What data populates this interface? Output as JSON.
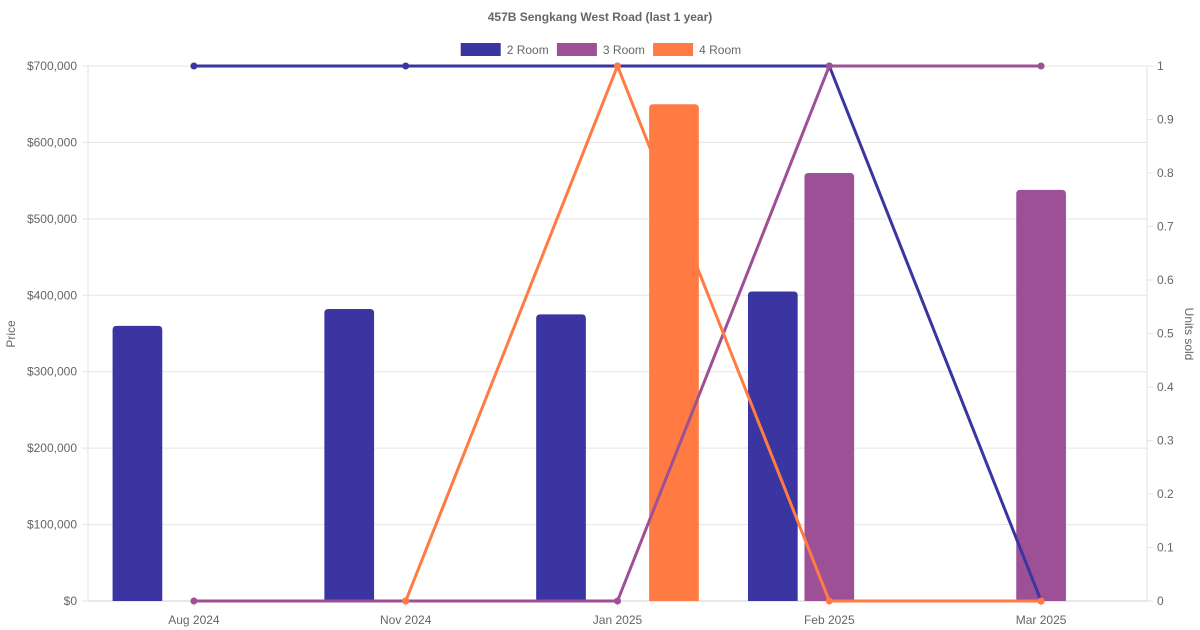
{
  "chart_data": {
    "type": "bar",
    "title": "457B Sengkang West Road (last 1 year)",
    "categories": [
      "Aug 2024",
      "Nov 2024",
      "Jan 2025",
      "Feb 2025",
      "Mar 2025"
    ],
    "y_left": {
      "label": "Price",
      "ticks": [
        "$0",
        "$100,000",
        "$200,000",
        "$300,000",
        "$400,000",
        "$500,000",
        "$600,000",
        "$700,000"
      ],
      "range": [
        0,
        700000
      ]
    },
    "y_right": {
      "label": "Units sold",
      "ticks": [
        "0",
        "0.1",
        "0.2",
        "0.3",
        "0.4",
        "0.5",
        "0.6",
        "0.7",
        "0.8",
        "0.9",
        "1"
      ],
      "range": [
        0,
        1
      ]
    },
    "legend_position": "top",
    "grid": true,
    "series": [
      {
        "name": "2 Room",
        "color": "#3a35a0",
        "price": [
          360000,
          382000,
          375000,
          405000,
          null
        ],
        "units": [
          1,
          1,
          1,
          1,
          0
        ]
      },
      {
        "name": "3 Room",
        "color": "#9e5096",
        "price": [
          null,
          null,
          null,
          560000,
          538000
        ],
        "units": [
          0,
          0,
          0,
          1,
          1
        ]
      },
      {
        "name": "4 Room",
        "color": "#ff7b43",
        "price": [
          null,
          null,
          650000,
          null,
          null
        ],
        "units": [
          null,
          0,
          1,
          0,
          0
        ]
      }
    ]
  }
}
